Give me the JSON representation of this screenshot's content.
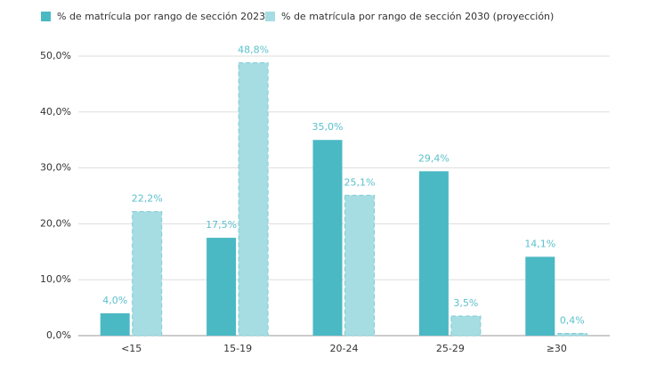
{
  "chart_data": {
    "type": "bar",
    "categories": [
      "<15",
      "15-19",
      "20-24",
      "25-29",
      "≥30"
    ],
    "series": [
      {
        "name": "% de matrícula por rango de sección 2023",
        "color": "#4ab9c4",
        "values": [
          4.0,
          17.5,
          35.0,
          29.4,
          14.1
        ],
        "value_labels": [
          "4,0%",
          "17,5%",
          "35,0%",
          "29,4%",
          "14,1%"
        ]
      },
      {
        "name": "% de matrícula por rango de sección 2030 (proyección)",
        "color": "#a6dde3",
        "values": [
          22.2,
          48.8,
          25.1,
          3.5,
          0.4
        ],
        "value_labels": [
          "22,2%",
          "48,8%",
          "25,1%",
          "3,5%",
          "0,4%"
        ]
      }
    ],
    "ylim": [
      0,
      50
    ],
    "yticks": [
      {
        "value": 0,
        "label": "0,0%"
      },
      {
        "value": 10,
        "label": "10,0%"
      },
      {
        "value": 20,
        "label": "20,0%"
      },
      {
        "value": 30,
        "label": "30,0%"
      },
      {
        "value": 40,
        "label": "40,0%"
      },
      {
        "value": 50,
        "label": "50,0%"
      }
    ],
    "grid": true
  }
}
